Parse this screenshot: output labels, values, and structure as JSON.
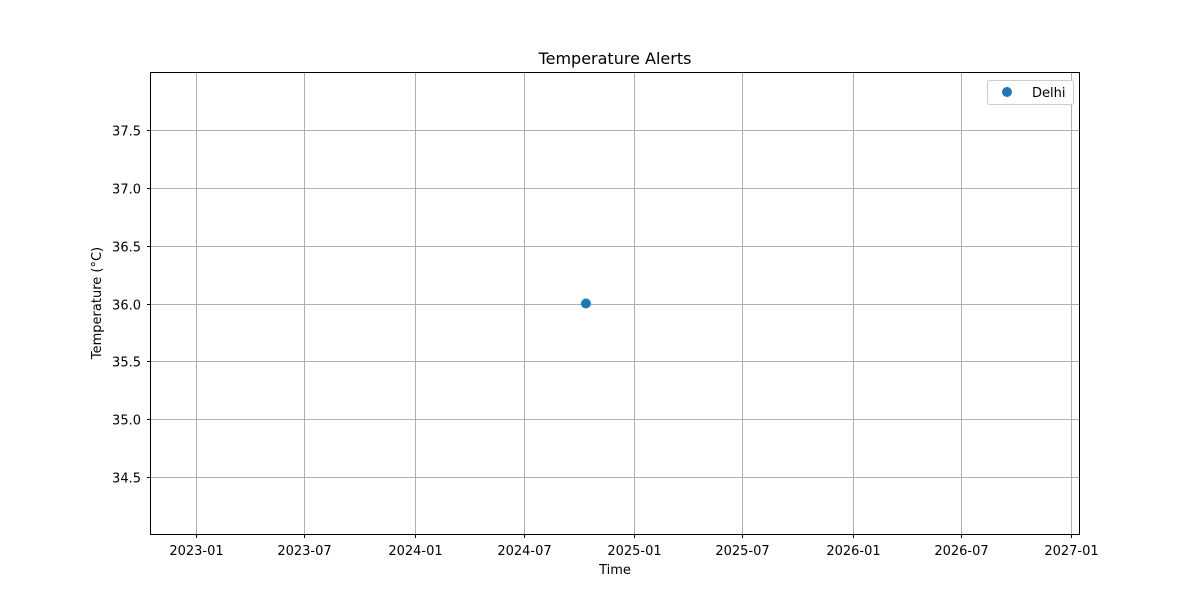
{
  "chart_data": {
    "type": "scatter",
    "title": "Temperature Alerts",
    "xlabel": "Time",
    "ylabel": "Temperature (°C)",
    "xlim": [
      "2022-10-18",
      "2027-01-14"
    ],
    "ylim": [
      34.01,
      37.99
    ],
    "x_ticks": [
      "2023-01",
      "2023-07",
      "2024-01",
      "2024-07",
      "2025-01",
      "2025-07",
      "2026-01",
      "2026-07",
      "2027-01"
    ],
    "y_ticks": [
      34.5,
      35.0,
      35.5,
      36.0,
      36.5,
      37.0,
      37.5
    ],
    "grid": true,
    "legend_position": "top-right",
    "series": [
      {
        "name": "Delhi",
        "color": "#1f77b4",
        "points": [
          {
            "x": "2024-10-13",
            "y": 36.0
          }
        ]
      }
    ]
  }
}
